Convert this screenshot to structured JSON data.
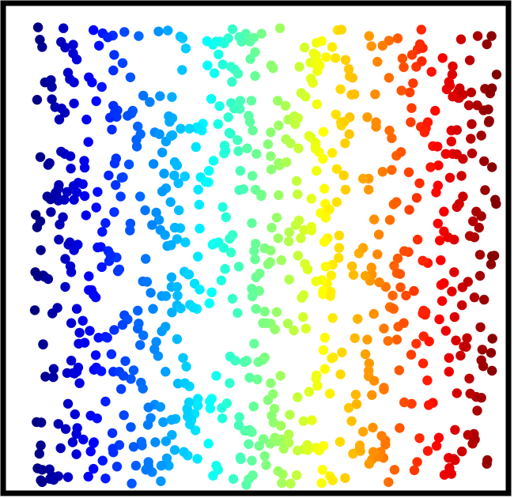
{
  "chart_data": {
    "type": "scatter",
    "title": "",
    "xlabel": "",
    "ylabel": "",
    "xlim": [
      0,
      1
    ],
    "ylim": [
      0,
      1
    ],
    "grid": false,
    "legend": "none",
    "colormap": "jet",
    "color_encodes": "x",
    "frame_color": "#000000",
    "point_color_example": "#00008f",
    "point_count_approx": 900,
    "series": [
      {
        "points": []
      }
    ]
  }
}
